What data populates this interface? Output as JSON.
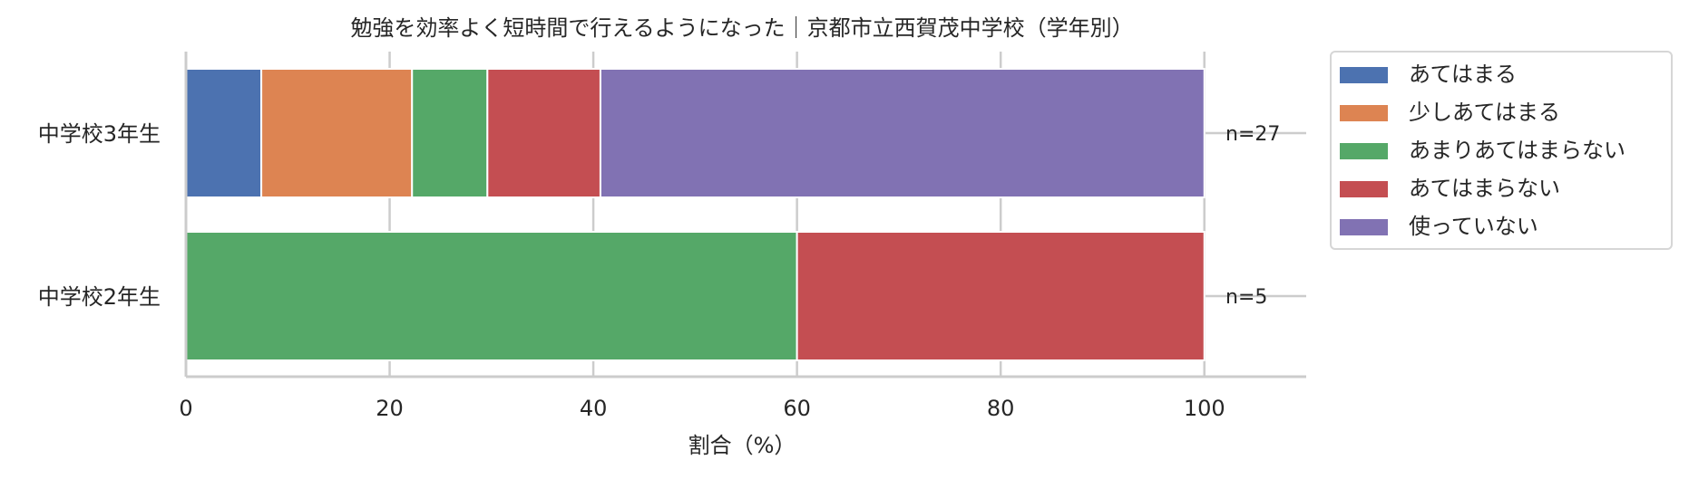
{
  "chart_data": {
    "type": "bar",
    "orientation": "horizontal",
    "stacked": true,
    "title": "勉強を効率よく短時間で行えるようになった｜京都市立西賀茂中学校（学年別）",
    "xlabel": "割合（%）",
    "ylabel": "",
    "xlim": [
      0,
      110
    ],
    "xticks": [
      0,
      20,
      40,
      60,
      80,
      100
    ],
    "grid": true,
    "legend_position": "outside-right",
    "categories": [
      "中学校3年生",
      "中学校2年生"
    ],
    "annotations": [
      "n=27",
      "n=5"
    ],
    "series": [
      {
        "name": "あてはまる",
        "color": "#4c72b0",
        "values": [
          7.4,
          0
        ]
      },
      {
        "name": "少しあてはまる",
        "color": "#dd8452",
        "values": [
          14.8,
          0
        ]
      },
      {
        "name": "あまりあてはまらない",
        "color": "#55a868",
        "values": [
          7.4,
          60
        ]
      },
      {
        "name": "あてはまらない",
        "color": "#c44e52",
        "values": [
          11.1,
          40
        ]
      },
      {
        "name": "使っていない",
        "color": "#8172b3",
        "values": [
          59.3,
          0
        ]
      }
    ]
  }
}
